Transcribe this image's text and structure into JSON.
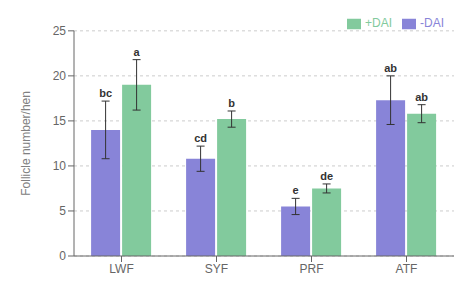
{
  "chart_data": {
    "type": "bar",
    "categories": [
      "LWF",
      "SYF",
      "PRF",
      "ATF"
    ],
    "series": [
      {
        "name": "-DAI",
        "color": "#8884d8",
        "values": [
          14.0,
          10.8,
          5.5,
          17.3
        ],
        "errors": [
          3.2,
          1.4,
          0.9,
          2.7
        ],
        "labels": [
          "bc",
          "cd",
          "e",
          "ab"
        ]
      },
      {
        "name": "+DAI",
        "color": "#82ca9d",
        "values": [
          19.0,
          15.2,
          7.5,
          15.8
        ],
        "errors": [
          2.8,
          0.9,
          0.5,
          1.0
        ],
        "labels": [
          "a",
          "b",
          "de",
          "ab"
        ]
      }
    ],
    "ylabel": "Follicle number/hen",
    "ylim": [
      0,
      25
    ],
    "yticks": [
      0,
      5,
      10,
      15,
      20,
      25
    ],
    "legend": "upper right"
  }
}
